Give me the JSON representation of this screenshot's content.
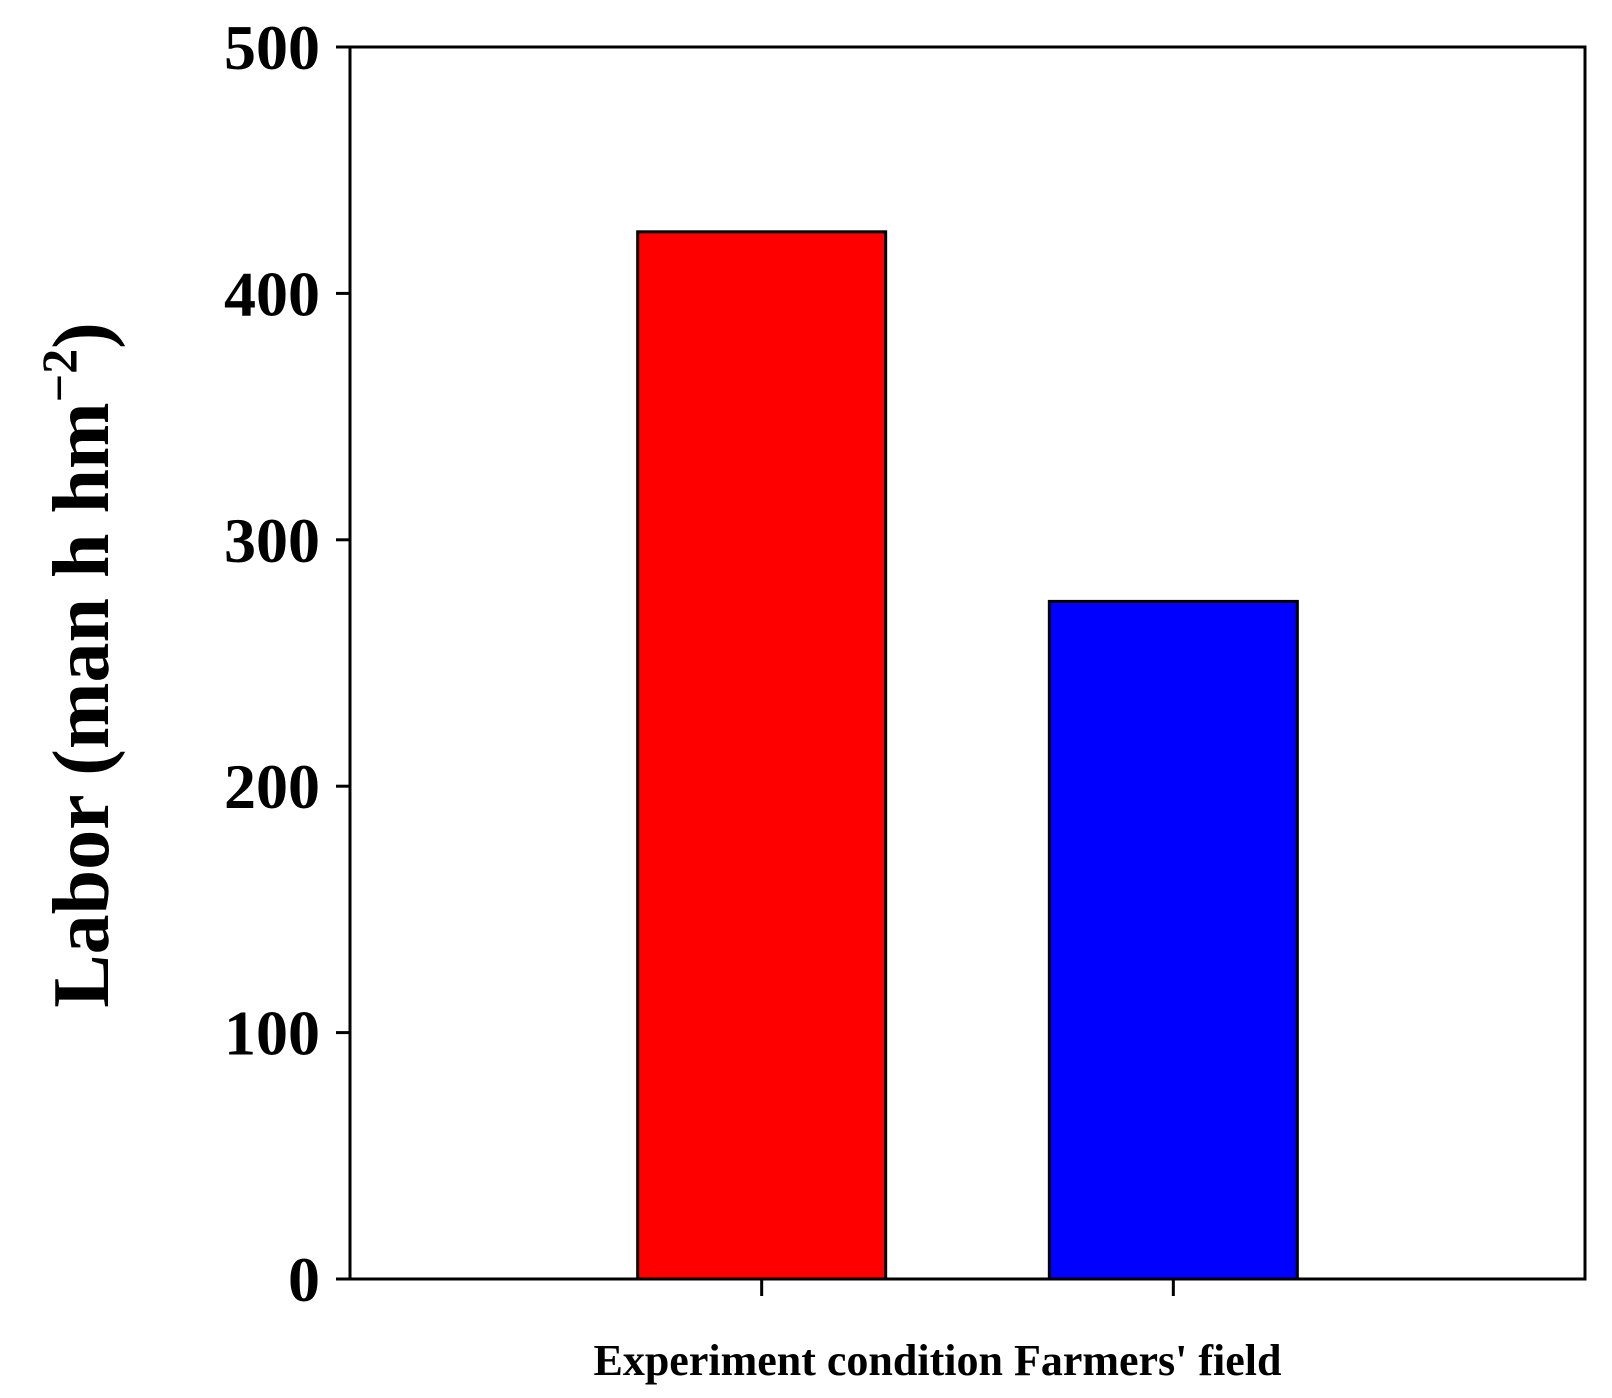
{
  "chart_data": {
    "type": "bar",
    "categories": [
      "Experiment condition",
      "Farmers' field"
    ],
    "values": [
      425,
      275
    ],
    "colors": [
      "#ff0000",
      "#0000ff"
    ],
    "ylabel": "Labor (man h hm",
    "ylabel_superscript": "−2",
    "ylabel_close": ")",
    "ylim": [
      0,
      500
    ],
    "yticks": [
      "0",
      "100",
      "200",
      "300",
      "400",
      "500"
    ],
    "grid": false,
    "legend": "none"
  }
}
